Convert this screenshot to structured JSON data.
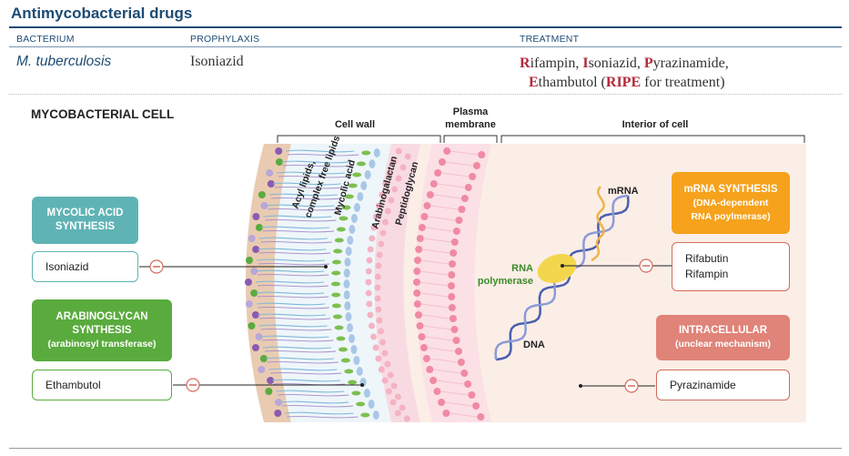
{
  "title": "Antimycobacterial drugs",
  "table": {
    "headers": {
      "bacterium": "BACTERIUM",
      "prophylaxis": "PROPHYLAXIS",
      "treatment": "TREATMENT"
    },
    "row": {
      "bacterium": "M. tuberculosis",
      "prophylaxis": "Isoniazid",
      "treatment": {
        "r_letter": "R",
        "r_rest": "ifampin, ",
        "i_letter": "I",
        "i_rest": "soniazid, ",
        "p_letter": "P",
        "p_rest": "yrazinamide,",
        "e_letter": "E",
        "e_rest": "thambutol (",
        "ripe": "RIPE",
        "ripe_rest": " for treatment)"
      }
    }
  },
  "diagram": {
    "section_title": "MYCOBACTERIAL CELL",
    "regions": {
      "cell_wall": "Cell wall",
      "plasma_membrane_line1": "Plasma",
      "plasma_membrane_line2": "membrane",
      "interior": "Interior of cell"
    },
    "layers": {
      "acyl_line1": "Acyl lipids,",
      "acyl_line2": "complex free lipids",
      "mycolic": "Mycolic acid",
      "arabinogalactan": "Arabinogalactan",
      "peptidoglycan": "Peptidoglycan"
    },
    "labels": {
      "mrna": "mRNA",
      "rna_pol_line1": "RNA",
      "rna_pol_line2": "polymerase",
      "dna": "DNA"
    },
    "mycolic_box": {
      "line1": "MYCOLIC ACID",
      "line2": "SYNTHESIS",
      "drug": "Isoniazid"
    },
    "arabino_box": {
      "line1": "ARABINOGLYCAN",
      "line2": "SYNTHESIS",
      "line3": "(arabinosyl transferase)",
      "drug": "Ethambutol"
    },
    "mrna_box": {
      "line1": "mRNA SYNTHESIS",
      "line2": "(DNA-dependent",
      "line3": "RNA poylmerase)",
      "drug1": "Rifabutin",
      "drug2": "Rifampin"
    },
    "intra_box": {
      "line1": "INTRACELLULAR",
      "line2": "(unclear mechanism)",
      "drug": "Pyrazinamide"
    },
    "inhibit_symbol": "−",
    "colors": {
      "teal": "#5fb3b5",
      "green": "#5aab3e",
      "orange": "#f6a21c",
      "salmon": "#e08378",
      "navy": "#1d4b73",
      "red": "#b22a3a"
    }
  }
}
